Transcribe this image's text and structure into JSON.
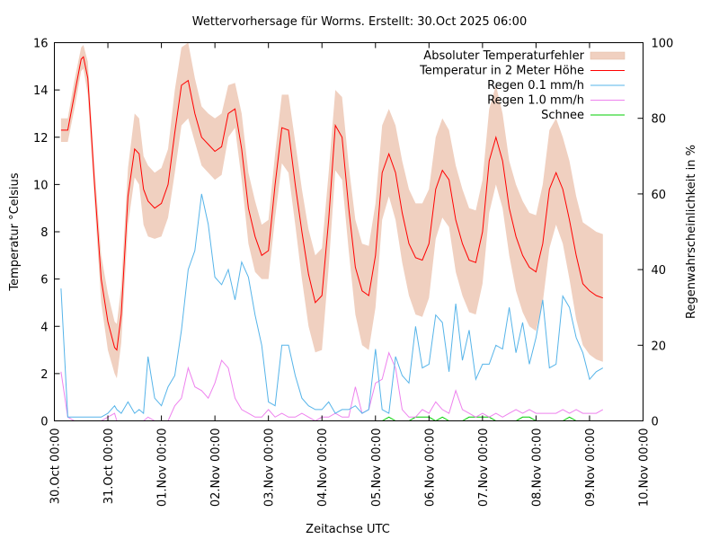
{
  "chart_data": {
    "type": "line",
    "title": "Wettervorhersage für Worms. Erstellt: 30.Oct 2025 06:00",
    "xlabel": "Zeitachse UTC",
    "ylabel": "Temperatur °Celsius",
    "y2label": "Regenwahrscheinlichkeit in %",
    "ylim": [
      0,
      16
    ],
    "y2lim": [
      0,
      100
    ],
    "xlim_days": [
      0,
      11
    ],
    "yticks": [
      "0",
      "2",
      "4",
      "6",
      "8",
      "10",
      "12",
      "14",
      "16"
    ],
    "y2ticks": [
      "0",
      "20",
      "40",
      "60",
      "80",
      "100"
    ],
    "xticks": [
      "30.Oct 00:00",
      "31.Oct 00:00",
      "01.Nov 00:00",
      "02.Nov 00:00",
      "03.Nov 00:00",
      "04.Nov 00:00",
      "05.Nov 00:00",
      "06.Nov 00:00",
      "07.Nov 00:00",
      "08.Nov 00:00",
      "09.Nov 00:00",
      "10.Nov 00:00"
    ],
    "grid": false,
    "legend_position": "top-right",
    "x_unit": "hours since 30.Oct 00:00 UTC",
    "x": [
      3,
      6,
      9,
      12,
      13,
      15,
      18,
      21,
      24,
      27,
      28,
      30,
      33,
      36,
      38,
      40,
      42,
      45,
      48,
      51,
      54,
      57,
      60,
      63,
      66,
      69,
      72,
      75,
      78,
      81,
      84,
      87,
      90,
      93,
      96,
      99,
      102,
      105,
      108,
      111,
      114,
      117,
      120,
      123,
      126,
      129,
      132,
      135,
      138,
      141,
      144,
      147,
      150,
      153,
      156,
      159,
      162,
      165,
      168,
      171,
      174,
      177,
      180,
      183,
      186,
      189,
      192,
      195,
      198,
      201,
      204,
      207,
      210,
      213,
      216,
      219,
      222,
      225,
      228,
      231,
      234,
      237,
      240,
      243,
      246
    ],
    "series": [
      {
        "name": "Temperatur in 2 Meter Höhe",
        "axis": "left",
        "color": "#ff0000",
        "values": [
          12.3,
          12.3,
          13.8,
          15.3,
          15.4,
          14.5,
          10.0,
          6.0,
          4.2,
          3.1,
          3.0,
          4.5,
          9.5,
          11.5,
          11.3,
          9.8,
          9.3,
          9.0,
          9.2,
          10.0,
          12.2,
          14.2,
          14.4,
          13.0,
          12.0,
          11.7,
          11.4,
          11.6,
          13.0,
          13.2,
          11.5,
          9.0,
          7.8,
          7.0,
          7.2,
          10.0,
          12.4,
          12.3,
          10.0,
          8.0,
          6.2,
          5.0,
          5.3,
          8.5,
          12.5,
          12.0,
          9.0,
          6.5,
          5.5,
          5.3,
          7.0,
          10.5,
          11.3,
          10.5,
          8.8,
          7.5,
          6.9,
          6.8,
          7.5,
          9.8,
          10.6,
          10.2,
          8.5,
          7.5,
          6.8,
          6.7,
          8.0,
          11.0,
          12.0,
          11.0,
          9.0,
          7.8,
          7.0,
          6.5,
          6.3,
          7.5,
          9.8,
          10.5,
          9.8,
          8.5,
          7.0,
          5.8,
          5.5,
          5.3,
          5.2
        ]
      },
      {
        "name": "Absoluter Temperaturfehler",
        "axis": "left",
        "color": "#f0d0c0",
        "type": "band",
        "lower": [
          11.8,
          11.8,
          13.2,
          14.8,
          14.9,
          13.8,
          9.3,
          5.0,
          3.0,
          2.0,
          1.8,
          3.3,
          8.3,
          10.3,
          10.0,
          8.3,
          7.8,
          7.7,
          7.8,
          8.6,
          10.5,
          12.5,
          12.8,
          11.8,
          10.8,
          10.5,
          10.2,
          10.4,
          12.0,
          12.4,
          10.2,
          7.5,
          6.3,
          6.0,
          6.0,
          8.6,
          10.9,
          10.5,
          8.3,
          6.0,
          4.0,
          2.9,
          3.0,
          6.5,
          10.6,
          10.2,
          7.2,
          4.5,
          3.2,
          3.0,
          4.8,
          8.5,
          9.5,
          8.5,
          6.7,
          5.3,
          4.5,
          4.4,
          5.2,
          7.7,
          8.6,
          8.2,
          6.3,
          5.3,
          4.6,
          4.5,
          5.8,
          8.8,
          10.0,
          9.0,
          7.0,
          5.5,
          4.6,
          4.0,
          3.8,
          5.0,
          7.3,
          8.3,
          7.5,
          6.0,
          4.3,
          3.2,
          2.8,
          2.6,
          2.5
        ],
        "upper": [
          12.8,
          12.8,
          14.4,
          15.8,
          15.9,
          15.2,
          10.7,
          7.0,
          5.4,
          4.2,
          4.1,
          5.7,
          10.7,
          13.0,
          12.8,
          11.2,
          10.8,
          10.5,
          10.7,
          11.5,
          14.0,
          15.8,
          16.0,
          14.5,
          13.3,
          13.0,
          12.8,
          13.0,
          14.2,
          14.3,
          13.0,
          10.5,
          9.3,
          8.3,
          8.5,
          11.3,
          13.8,
          13.8,
          11.8,
          9.8,
          8.1,
          7.0,
          7.3,
          10.5,
          14.0,
          13.7,
          10.8,
          8.5,
          7.5,
          7.4,
          9.2,
          12.5,
          13.2,
          12.5,
          11.0,
          9.8,
          9.2,
          9.2,
          9.8,
          12.0,
          12.8,
          12.3,
          10.8,
          9.8,
          9.0,
          8.9,
          10.2,
          13.2,
          14.2,
          13.0,
          11.0,
          10.0,
          9.3,
          8.8,
          8.7,
          10.0,
          12.3,
          12.8,
          12.0,
          11.0,
          9.5,
          8.4,
          8.2,
          8.0,
          7.9
        ]
      },
      {
        "name": "Regen 0.1 mm/h",
        "axis": "right",
        "color": "#56b4e9",
        "values": [
          35,
          1,
          1,
          1,
          1,
          1,
          1,
          1,
          2,
          4,
          3,
          2,
          5,
          2,
          3,
          2,
          17,
          6,
          4,
          9,
          12,
          24,
          40,
          45,
          60,
          52,
          38,
          36,
          40,
          32,
          42,
          38,
          28,
          20,
          5,
          4,
          20,
          20,
          12,
          6,
          4,
          3,
          3,
          5,
          2,
          3,
          3,
          4,
          2,
          3,
          19,
          3,
          2,
          17,
          12,
          10,
          25,
          14,
          15,
          28,
          26,
          13,
          31,
          16,
          24,
          11,
          15,
          15,
          20,
          19,
          30,
          18,
          26,
          15,
          22,
          32,
          14,
          15,
          33,
          30,
          22,
          18,
          11,
          13,
          14
        ]
      },
      {
        "name": "Regen 1.0 mm/h",
        "axis": "right",
        "color": "#ee82ee",
        "values": [
          13,
          1,
          0,
          0,
          0,
          0,
          0,
          0,
          1,
          2,
          0,
          0,
          0,
          0,
          0,
          0,
          1,
          0,
          0,
          0,
          4,
          6,
          14,
          9,
          8,
          6,
          10,
          16,
          14,
          6,
          3,
          2,
          1,
          1,
          3,
          1,
          2,
          1,
          1,
          2,
          1,
          0,
          1,
          1,
          2,
          1,
          1,
          9,
          2,
          3,
          10,
          11,
          18,
          14,
          3,
          1,
          1,
          3,
          2,
          5,
          3,
          2,
          8,
          3,
          2,
          1,
          2,
          1,
          2,
          1,
          2,
          3,
          2,
          3,
          2,
          2,
          2,
          2,
          3,
          2,
          3,
          2,
          2,
          2,
          3
        ]
      },
      {
        "name": "Schnee",
        "axis": "right",
        "color": "#00cc00",
        "values": [
          0,
          0,
          0,
          0,
          0,
          0,
          0,
          0,
          0,
          0,
          0,
          0,
          0,
          0,
          0,
          0,
          0,
          0,
          0,
          0,
          0,
          0,
          0,
          0,
          0,
          0,
          0,
          0,
          0,
          0,
          0,
          0,
          0,
          0,
          0,
          0,
          0,
          0,
          0,
          0,
          0,
          0,
          0,
          0,
          0,
          0,
          0,
          0,
          0,
          0,
          0,
          0,
          1,
          0,
          0,
          0,
          1,
          1,
          1,
          0,
          1,
          0,
          0,
          0,
          1,
          1,
          1,
          1,
          0,
          0,
          0,
          0,
          1,
          1,
          0,
          0,
          0,
          0,
          0,
          1,
          0,
          0,
          0,
          0,
          0
        ]
      }
    ],
    "legend": [
      "Absoluter Temperaturfehler",
      "Temperatur in 2 Meter Höhe",
      "Regen 0.1 mm/h",
      "Regen 1.0 mm/h",
      "Schnee"
    ]
  }
}
